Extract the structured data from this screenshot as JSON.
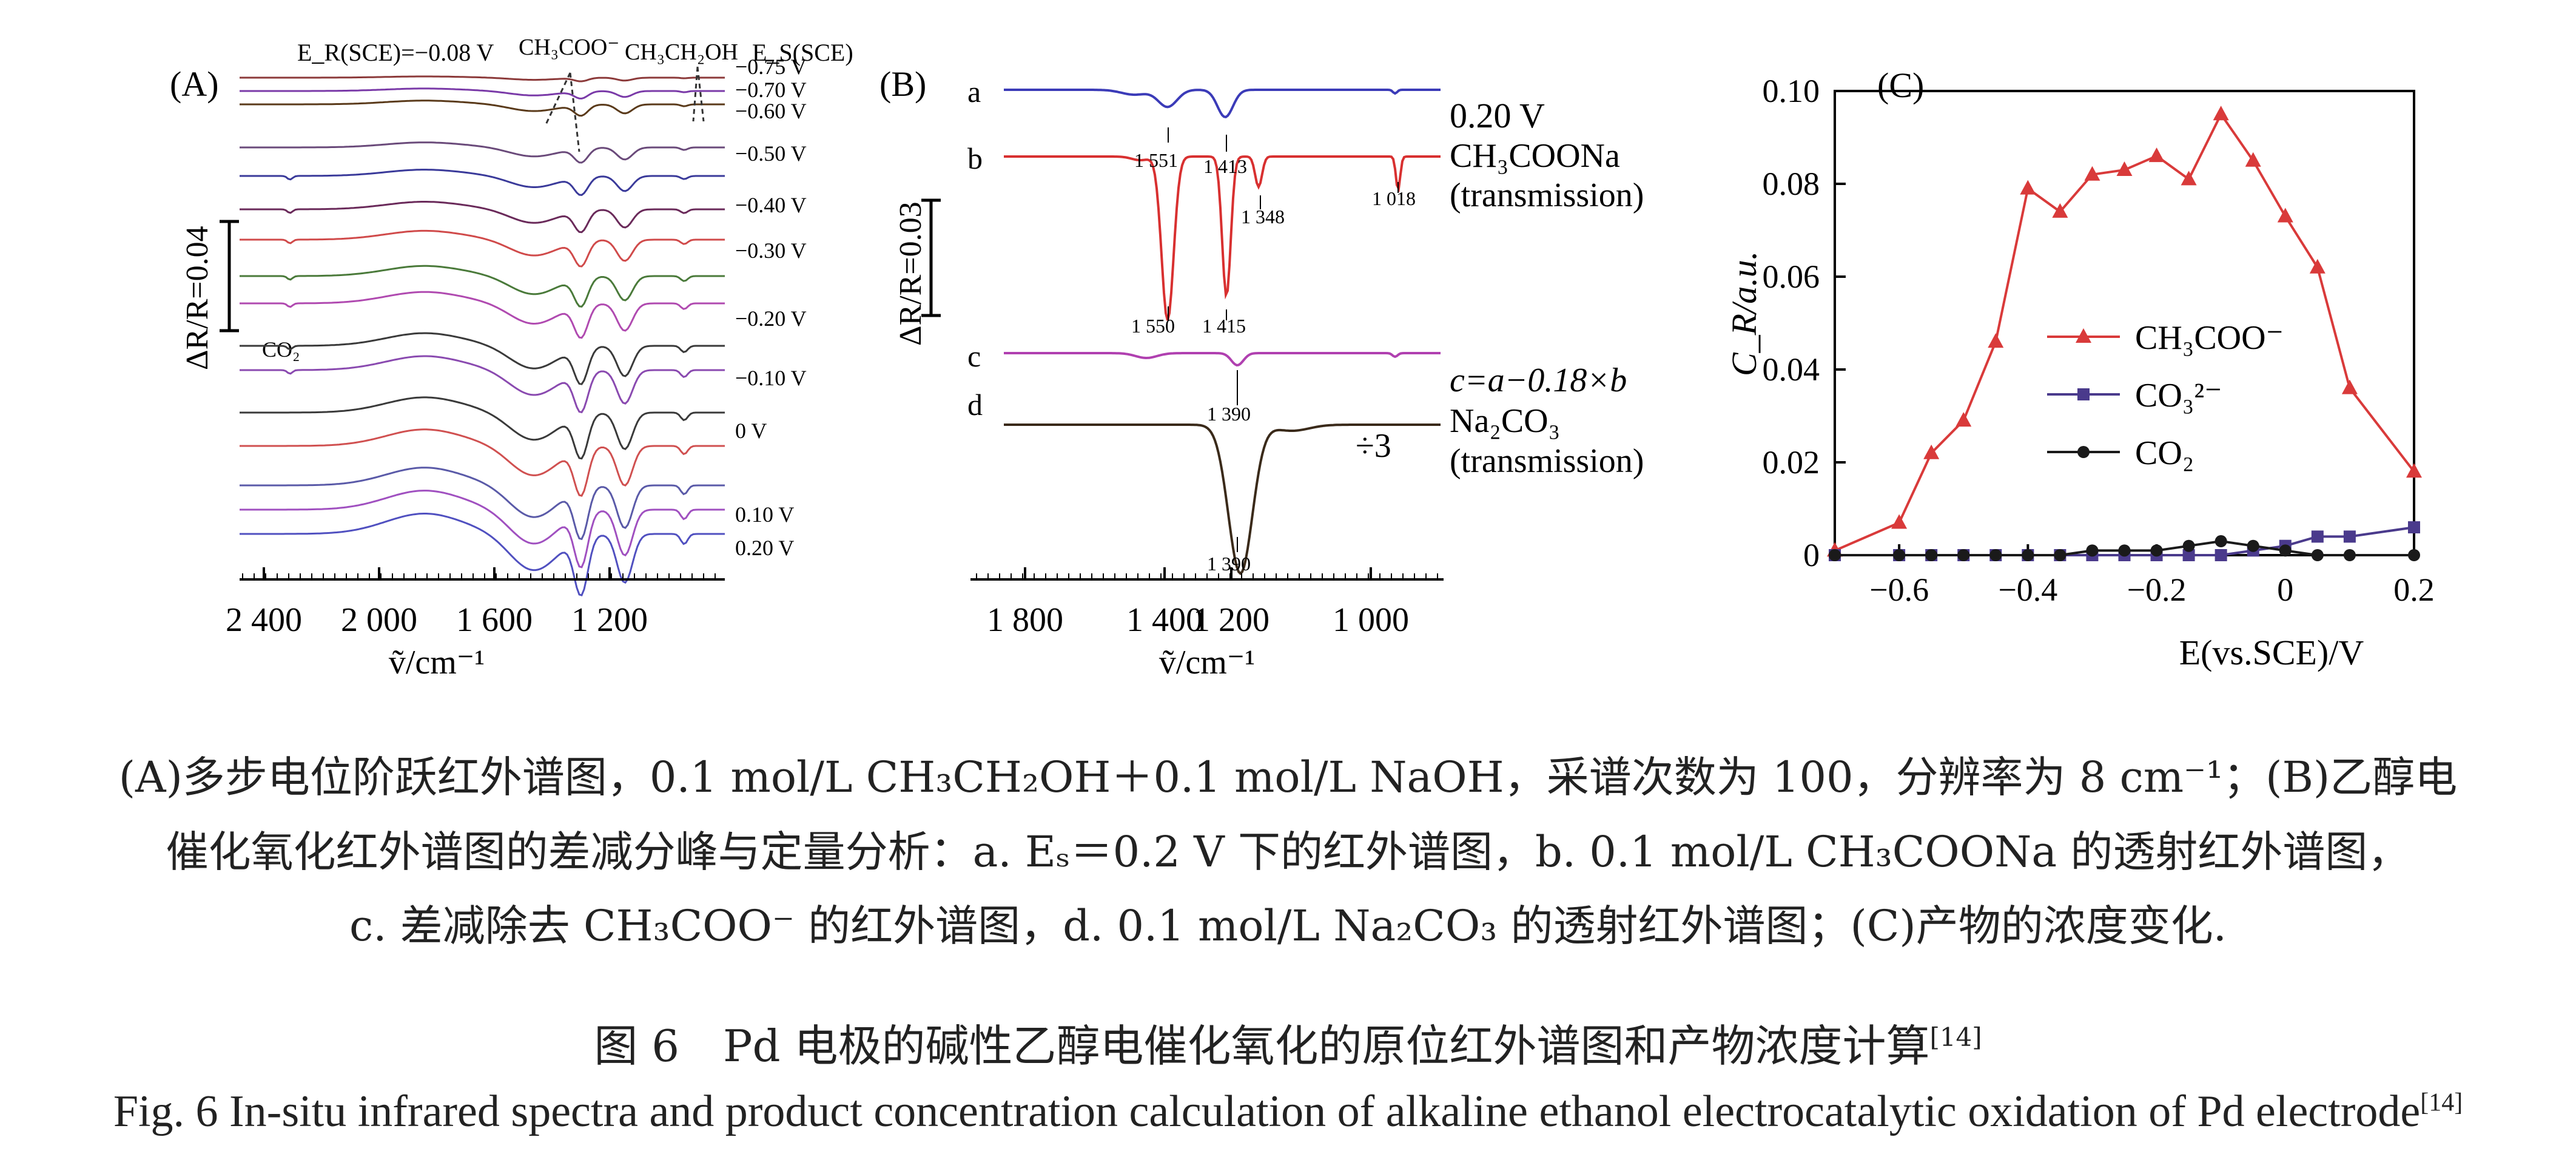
{
  "panels": {
    "A": {
      "label": "(A)",
      "er_label": "E_R(SCE)=−0.08 V",
      "es_label": "E_S(SCE)",
      "band_labels": [
        "CH₃COO⁻",
        "CH₃CH₂OH",
        "CO₂"
      ],
      "scale_bar": "ΔR/R=0.04",
      "xlabel": "ṽ/cm⁻¹",
      "x_ticks": [
        "2 400",
        "2 000",
        "1 600",
        "1 200"
      ],
      "potentials": [
        "−0.75 V",
        "−0.70 V",
        "−0.60 V",
        "−0.50 V",
        "−0.40 V",
        "−0.30 V",
        "−0.20 V",
        "−0.10 V",
        "0 V",
        "0.10 V",
        "0.20 V"
      ]
    },
    "B": {
      "label": "(B)",
      "scale_bar": "ΔR/R=0.03",
      "xlabel": "ṽ/cm⁻¹",
      "x_ticks": [
        "1 800",
        "1 400",
        "1 200",
        "1 000"
      ],
      "trace_letters": [
        "a",
        "b",
        "c",
        "d"
      ],
      "trace_a": "0.20 V",
      "trace_b": [
        "CH₃COONa",
        "(transmission)"
      ],
      "trace_c": "c=a−0.18×b",
      "trace_d": [
        "Na₂CO₃",
        "(transmission)"
      ],
      "divide": "÷3",
      "peaks": [
        "1 551",
        "1 413",
        "1 550",
        "1 415",
        "1 348",
        "1 018",
        "1 390",
        "1 390"
      ]
    },
    "C": {
      "label": "(C)"
    }
  },
  "chart_data": {
    "type": "line",
    "title": "",
    "xlabel": "E(vs.SCE)/V",
    "ylabel": "C_R/a.u.",
    "xlim": [
      -0.7,
      0.2
    ],
    "ylim": [
      0,
      0.1
    ],
    "x_tick_labels": [
      "−0.6",
      "−0.4",
      "−0.2",
      "0",
      "0.2"
    ],
    "y_tick_labels": [
      "0",
      "0.02",
      "0.04",
      "0.06",
      "0.08",
      "0.10"
    ],
    "legend_position": "center-left",
    "series": [
      {
        "name": "CH₃COO⁻",
        "color": "#d93a3a",
        "marker": "triangle",
        "x": [
          -0.7,
          -0.6,
          -0.55,
          -0.5,
          -0.45,
          -0.4,
          -0.35,
          -0.3,
          -0.25,
          -0.2,
          -0.15,
          -0.1,
          -0.05,
          0,
          0.05,
          0.1,
          0.2
        ],
        "y": [
          0.001,
          0.007,
          0.022,
          0.029,
          0.046,
          0.079,
          0.074,
          0.082,
          0.083,
          0.086,
          0.081,
          0.095,
          0.085,
          0.073,
          0.062,
          0.036,
          0.018
        ]
      },
      {
        "name": "CO₃²⁻",
        "color": "#4a3a8c",
        "marker": "square",
        "x": [
          -0.7,
          -0.6,
          -0.55,
          -0.5,
          -0.45,
          -0.4,
          -0.35,
          -0.3,
          -0.25,
          -0.2,
          -0.15,
          -0.1,
          -0.05,
          0,
          0.05,
          0.1,
          0.2
        ],
        "y": [
          0,
          0,
          0,
          0,
          0,
          0,
          0,
          0,
          0,
          0,
          0,
          0,
          0.001,
          0.002,
          0.004,
          0.004,
          0.006
        ]
      },
      {
        "name": "CO₂",
        "color": "#1a1a1a",
        "marker": "circle",
        "x": [
          -0.7,
          -0.6,
          -0.55,
          -0.5,
          -0.45,
          -0.4,
          -0.35,
          -0.3,
          -0.25,
          -0.2,
          -0.15,
          -0.1,
          -0.05,
          0,
          0.05,
          0.1,
          0.2
        ],
        "y": [
          0,
          0,
          0,
          0,
          0,
          0,
          0,
          0.001,
          0.001,
          0.001,
          0.002,
          0.003,
          0.002,
          0.001,
          0,
          0,
          0
        ]
      }
    ]
  },
  "caption": {
    "line1": "(A)多步电位阶跃红外谱图，0.1 mol/L CH₃CH₂OH＋0.1 mol/L NaOH，采谱次数为 100，分辨率为 8 cm⁻¹；(B)乙醇电",
    "line2": "催化氧化红外谱图的差减分峰与定量分析：a. Eₛ＝0.2 V 下的红外谱图，b. 0.1 mol/L CH₃COONa 的透射红外谱图，",
    "line3": "c. 差减除去 CH₃COO⁻ 的红外谱图，d. 0.1 mol/L Na₂CO₃ 的透射红外谱图；(C)产物的浓度变化."
  },
  "figure_title_cn": "图 6　Pd 电极的碱性乙醇电催化氧化的原位红外谱图和产物浓度计算",
  "figure_title_en": "Fig. 6  In-situ infrared spectra and product concentration calculation of alkaline ethanol electrocatalytic oxidation of Pd electrode",
  "ref": "[14]"
}
